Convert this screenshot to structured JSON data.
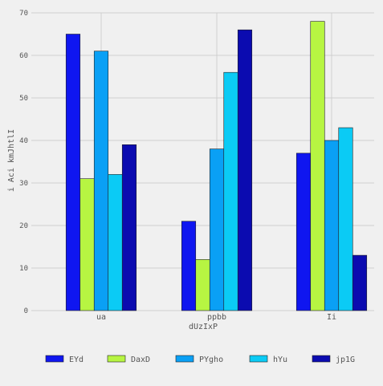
{
  "chart_data": {
    "type": "bar",
    "title": "",
    "xlabel": "dUzIxP",
    "ylabel": "i Aci kmJhtlI",
    "categories": [
      "ua",
      "ppbb",
      "Ii"
    ],
    "series": [
      {
        "name": "EYd",
        "color": "#0f16f0",
        "values": [
          65,
          21,
          37
        ]
      },
      {
        "name": "DaxD",
        "color": "#b7f542",
        "values": [
          31,
          12,
          68
        ]
      },
      {
        "name": "PYgho",
        "color": "#0aa0f5",
        "values": [
          61,
          38,
          40
        ]
      },
      {
        "name": "hYu",
        "color": "#0bcbf5",
        "values": [
          32,
          56,
          43
        ]
      },
      {
        "name": "jp1G",
        "color": "#0b0bb0",
        "values": [
          39,
          66,
          13
        ]
      }
    ],
    "ylim": [
      0,
      70
    ],
    "yticks": [
      0,
      10,
      20,
      30,
      40,
      50,
      60,
      70
    ],
    "grid": true,
    "legend_position": "bottom"
  }
}
